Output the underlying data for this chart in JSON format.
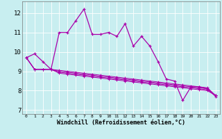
{
  "title": "",
  "xlabel": "Windchill (Refroidissement éolien,°C)",
  "background_color": "#c8eef0",
  "line_color": "#aa00aa",
  "xlim": [
    -0.5,
    23.5
  ],
  "ylim": [
    6.8,
    12.6
  ],
  "yticks": [
    7,
    8,
    9,
    10,
    11,
    12
  ],
  "xticks": [
    0,
    1,
    2,
    3,
    4,
    5,
    6,
    7,
    8,
    9,
    10,
    11,
    12,
    13,
    14,
    15,
    16,
    17,
    18,
    19,
    20,
    21,
    22,
    23
  ],
  "series1": [
    9.7,
    9.9,
    9.5,
    9.1,
    11.0,
    11.0,
    11.6,
    12.2,
    10.9,
    10.9,
    11.0,
    10.8,
    11.45,
    10.3,
    10.8,
    10.3,
    9.5,
    8.6,
    8.5,
    7.5,
    8.2,
    8.2,
    8.1,
    7.7
  ],
  "series2": [
    9.7,
    9.1,
    9.1,
    9.1,
    9.05,
    9.0,
    8.95,
    8.9,
    8.85,
    8.8,
    8.75,
    8.7,
    8.65,
    8.6,
    8.55,
    8.5,
    8.45,
    8.4,
    8.35,
    8.3,
    8.25,
    8.2,
    8.15,
    7.75
  ],
  "series3": [
    9.7,
    9.1,
    9.1,
    9.1,
    9.0,
    8.95,
    8.9,
    8.85,
    8.8,
    8.75,
    8.7,
    8.65,
    8.6,
    8.55,
    8.5,
    8.45,
    8.4,
    8.35,
    8.3,
    8.25,
    8.2,
    8.15,
    8.1,
    7.75
  ],
  "series4": [
    9.7,
    9.1,
    9.1,
    9.1,
    8.95,
    8.9,
    8.85,
    8.8,
    8.75,
    8.7,
    8.65,
    8.6,
    8.55,
    8.5,
    8.45,
    8.4,
    8.35,
    8.3,
    8.25,
    8.2,
    8.15,
    8.1,
    8.05,
    7.75
  ],
  "series5_x": [
    0,
    1,
    2,
    3,
    4,
    5,
    6,
    7,
    8,
    9,
    10,
    11,
    12,
    13,
    14,
    15,
    16,
    17,
    18,
    19,
    20,
    21,
    22,
    23
  ],
  "series5": [
    9.7,
    9.1,
    9.1,
    9.1,
    8.9,
    8.85,
    8.8,
    8.75,
    8.7,
    8.65,
    8.6,
    8.55,
    8.5,
    8.45,
    8.4,
    8.35,
    8.3,
    8.25,
    8.2,
    8.15,
    8.1,
    8.05,
    8.0,
    7.75
  ]
}
